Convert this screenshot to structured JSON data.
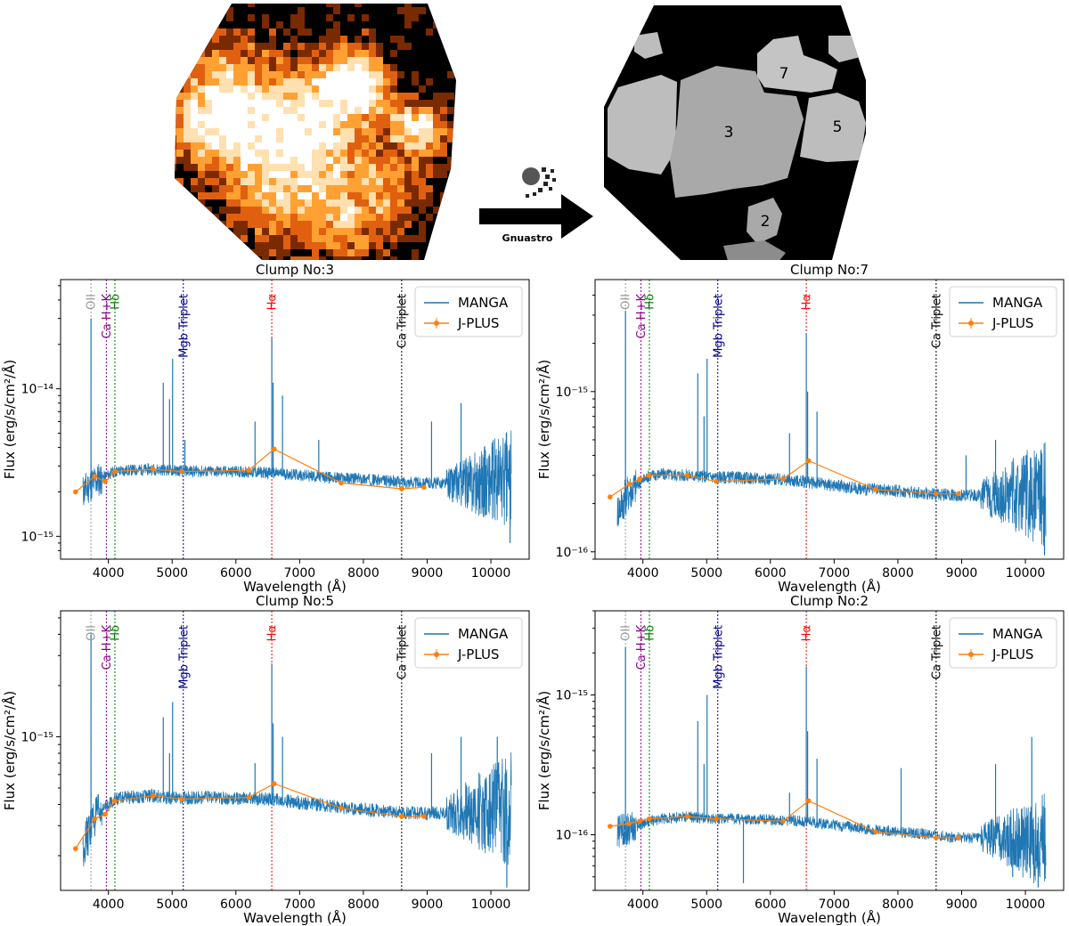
{
  "figure": {
    "arrow_label": "Gnuastro",
    "region_labels": [
      "7",
      "3",
      "5",
      "2"
    ]
  },
  "chart_data": [
    {
      "type": "line",
      "title": "Clump No:3",
      "xlabel": "Wavelength (Å)",
      "ylabel": "Flux (erg/s/cm²/Å)",
      "yscale": "log",
      "xlim": [
        3250,
        10600
      ],
      "ylim": [
        7e-16,
        5.5e-14
      ],
      "xticks": [
        4000,
        5000,
        6000,
        7000,
        8000,
        9000,
        10000
      ],
      "yticks": [
        {
          "value": 1e-15,
          "label": "10⁻¹⁵"
        },
        {
          "value": 1e-14,
          "label": "10⁻¹⁴"
        }
      ],
      "legend": {
        "position": "top-right",
        "entries": [
          "MANGA",
          "J-PLUS"
        ]
      },
      "grid": false,
      "lines": [
        {
          "x": 3727,
          "label": "OII",
          "color": "#9a9a9a"
        },
        {
          "x": 3968,
          "label": "Ca H+K",
          "color": "#8b008b"
        },
        {
          "x": 4102,
          "label": "Hδ",
          "color": "#008000"
        },
        {
          "x": 5175,
          "label": "Mgb Triplet",
          "color": "#00008b"
        },
        {
          "x": 6563,
          "label": "Hα",
          "color": "#ff0000"
        },
        {
          "x": 8600,
          "label": "Ca Triplet",
          "color": "#000000"
        }
      ],
      "series": [
        {
          "name": "MANGA",
          "color": "#1f77b4",
          "continuum": {
            "x": [
              3600,
              3750,
              3900,
              4100,
              4300,
              4700,
              5000,
              5500,
              6000,
              6500,
              7000,
              7500,
              8000,
              8500,
              9000,
              9500,
              10000,
              10300
            ],
            "y": [
              2e-15,
              2.3e-15,
              2.5e-15,
              2.75e-15,
              2.8e-15,
              2.85e-15,
              2.8e-15,
              2.75e-15,
              2.75e-15,
              2.7e-15,
              2.6e-15,
              2.5e-15,
              2.45e-15,
              2.35e-15,
              2.3e-15,
              2.3e-15,
              2.35e-15,
              2.4e-15
            ]
          },
          "emission": [
            {
              "x": 3727,
              "y": 3e-14
            },
            {
              "x": 4861,
              "y": 1.1e-14
            },
            {
              "x": 4959,
              "y": 8.5e-15
            },
            {
              "x": 5007,
              "y": 1.6e-14
            },
            {
              "x": 5200,
              "y": 4.5e-15
            },
            {
              "x": 6300,
              "y": 6e-15
            },
            {
              "x": 6563,
              "y": 2.2e-14
            },
            {
              "x": 6584,
              "y": 1.1e-14
            },
            {
              "x": 6731,
              "y": 9e-15
            },
            {
              "x": 9069,
              "y": 6e-15
            },
            {
              "x": 9532,
              "y": 8e-15
            },
            {
              "x": 7300,
              "y": 4.5e-15
            }
          ],
          "absorption": [
            {
              "x": 10300,
              "y": 9e-16
            },
            {
              "x": 9400,
              "y": 1.7e-15
            }
          ]
        },
        {
          "name": "J-PLUS",
          "color": "#ff7f0e",
          "x": [
            3485,
            3785,
            3950,
            4100,
            4700,
            5150,
            6200,
            6600,
            7650,
            8600,
            8950
          ],
          "y": [
            2e-15,
            2.55e-15,
            2.35e-15,
            2.75e-15,
            2.85e-15,
            2.75e-15,
            2.8e-15,
            3.9e-15,
            2.3e-15,
            2.1e-15,
            2.15e-15
          ]
        }
      ]
    },
    {
      "type": "line",
      "title": "Clump No:7",
      "xlabel": "Wavelength (Å)",
      "ylabel": "Flux (erg/s/cm²/Å)",
      "yscale": "log",
      "xlim": [
        3250,
        10600
      ],
      "ylim": [
        9e-17,
        5e-15
      ],
      "xticks": [
        4000,
        5000,
        6000,
        7000,
        8000,
        9000,
        10000
      ],
      "yticks": [
        {
          "value": 1e-16,
          "label": "10⁻¹⁶"
        },
        {
          "value": 1e-15,
          "label": "10⁻¹⁵"
        }
      ],
      "legend": {
        "position": "top-right",
        "entries": [
          "MANGA",
          "J-PLUS"
        ]
      },
      "grid": false,
      "lines": [
        {
          "x": 3727,
          "label": "OII",
          "color": "#9a9a9a"
        },
        {
          "x": 3968,
          "label": "Ca H+K",
          "color": "#8b008b"
        },
        {
          "x": 4102,
          "label": "Hδ",
          "color": "#008000"
        },
        {
          "x": 5175,
          "label": "Mgb Triplet",
          "color": "#00008b"
        },
        {
          "x": 6563,
          "label": "Hα",
          "color": "#ff0000"
        },
        {
          "x": 8600,
          "label": "Ca Triplet",
          "color": "#000000"
        }
      ],
      "series": [
        {
          "name": "MANGA",
          "color": "#1f77b4",
          "continuum": {
            "x": [
              3600,
              3750,
              3900,
              4100,
              4300,
              4700,
              5000,
              5500,
              6000,
              6500,
              7000,
              7500,
              8000,
              8500,
              9000,
              9500,
              10000,
              10300
            ],
            "y": [
              1.8e-16,
              2.3e-16,
              2.6e-16,
              3e-16,
              3.05e-16,
              3e-16,
              2.95e-16,
              2.9e-16,
              2.85e-16,
              2.75e-16,
              2.6e-16,
              2.45e-16,
              2.4e-16,
              2.3e-16,
              2.25e-16,
              2.25e-16,
              2.3e-16,
              2.3e-16
            ]
          },
          "emission": [
            {
              "x": 3727,
              "y": 3.2e-15
            },
            {
              "x": 4861,
              "y": 1.3e-15
            },
            {
              "x": 5007,
              "y": 1.6e-15
            },
            {
              "x": 4959,
              "y": 7e-16
            },
            {
              "x": 6300,
              "y": 5.5e-16
            },
            {
              "x": 6563,
              "y": 2.3e-15
            },
            {
              "x": 6584,
              "y": 1e-15
            },
            {
              "x": 6731,
              "y": 7.5e-16
            },
            {
              "x": 9069,
              "y": 4e-16
            },
            {
              "x": 9532,
              "y": 5e-16
            }
          ],
          "absorption": [
            {
              "x": 10300,
              "y": 9.5e-17
            },
            {
              "x": 3700,
              "y": 1.6e-16
            }
          ]
        },
        {
          "name": "J-PLUS",
          "color": "#ff7f0e",
          "x": [
            3485,
            3785,
            3950,
            4100,
            4700,
            5150,
            6200,
            6600,
            7650,
            8600,
            8950
          ],
          "y": [
            2.2e-16,
            2.65e-16,
            2.85e-16,
            3e-16,
            3e-16,
            2.75e-16,
            2.85e-16,
            3.7e-16,
            2.45e-16,
            2.3e-16,
            2.3e-16
          ]
        }
      ]
    },
    {
      "type": "line",
      "title": "Clump No:5",
      "xlabel": "Wavelength (Å)",
      "ylabel": "Flux (erg/s/cm²/Å)",
      "yscale": "log",
      "xlim": [
        3250,
        10600
      ],
      "ylim": [
        1.25e-16,
        5.5e-15
      ],
      "xticks": [
        4000,
        5000,
        6000,
        7000,
        8000,
        9000,
        10000
      ],
      "yticks": [
        {
          "value": 1e-15,
          "label": "10⁻¹⁵"
        }
      ],
      "legend": {
        "position": "top-right",
        "entries": [
          "MANGA",
          "J-PLUS"
        ]
      },
      "grid": false,
      "lines": [
        {
          "x": 3727,
          "label": "OII",
          "color": "#9a9a9a"
        },
        {
          "x": 3968,
          "label": "Ca H+K",
          "color": "#8b008b"
        },
        {
          "x": 4102,
          "label": "Hδ",
          "color": "#008000"
        },
        {
          "x": 5175,
          "label": "Mgb Triplet",
          "color": "#00008b"
        },
        {
          "x": 6563,
          "label": "Hα",
          "color": "#ff0000"
        },
        {
          "x": 8600,
          "label": "Ca Triplet",
          "color": "#000000"
        }
      ],
      "series": [
        {
          "name": "MANGA",
          "color": "#1f77b4",
          "continuum": {
            "x": [
              3600,
              3750,
              3900,
              4100,
              4300,
              4700,
              5000,
              5500,
              6000,
              6500,
              7000,
              7500,
              8000,
              8500,
              9000,
              9500,
              10000,
              10300
            ],
            "y": [
              2.2e-16,
              3.2e-16,
              3.7e-16,
              4.3e-16,
              4.4e-16,
              4.5e-16,
              4.35e-16,
              4.4e-16,
              4.35e-16,
              4.3e-16,
              4.1e-16,
              3.9e-16,
              3.75e-16,
              3.6e-16,
              3.55e-16,
              3.6e-16,
              3.7e-16,
              3.8e-16
            ]
          },
          "emission": [
            {
              "x": 3727,
              "y": 4e-15
            },
            {
              "x": 4861,
              "y": 1.3e-15
            },
            {
              "x": 5007,
              "y": 1.6e-15
            },
            {
              "x": 4959,
              "y": 8e-16
            },
            {
              "x": 6300,
              "y": 7e-16
            },
            {
              "x": 6563,
              "y": 2.7e-15
            },
            {
              "x": 6584,
              "y": 1.2e-15
            },
            {
              "x": 6731,
              "y": 1e-15
            },
            {
              "x": 9069,
              "y": 8e-16
            },
            {
              "x": 9532,
              "y": 1e-15
            },
            {
              "x": 10100,
              "y": 1e-15
            }
          ],
          "absorption": [
            {
              "x": 10250,
              "y": 1.3e-16
            },
            {
              "x": 3680,
              "y": 2e-16
            }
          ]
        },
        {
          "name": "J-PLUS",
          "color": "#ff7f0e",
          "x": [
            3485,
            3785,
            3950,
            4100,
            4700,
            5150,
            6200,
            6600,
            7650,
            8600,
            8950
          ],
          "y": [
            2.2e-16,
            3.3e-16,
            3.5e-16,
            4.2e-16,
            4.5e-16,
            4.3e-16,
            4.4e-16,
            5.3e-16,
            3.8e-16,
            3.4e-16,
            3.4e-16
          ]
        }
      ]
    },
    {
      "type": "line",
      "title": "Clump No:2",
      "xlabel": "Wavelength (Å)",
      "ylabel": "Flux (erg/s/cm²/Å)",
      "yscale": "log",
      "xlim": [
        3250,
        10600
      ],
      "ylim": [
        4e-17,
        4e-15
      ],
      "xticks": [
        4000,
        5000,
        6000,
        7000,
        8000,
        9000,
        10000
      ],
      "yticks": [
        {
          "value": 1e-16,
          "label": "10⁻¹⁶"
        },
        {
          "value": 1e-15,
          "label": "10⁻¹⁵"
        }
      ],
      "legend": {
        "position": "top-right",
        "entries": [
          "MANGA",
          "J-PLUS"
        ]
      },
      "grid": false,
      "lines": [
        {
          "x": 3727,
          "label": "OII",
          "color": "#9a9a9a"
        },
        {
          "x": 3968,
          "label": "Ca H+K",
          "color": "#8b008b"
        },
        {
          "x": 4102,
          "label": "Hδ",
          "color": "#008000"
        },
        {
          "x": 5175,
          "label": "Mgb Triplet",
          "color": "#00008b"
        },
        {
          "x": 6563,
          "label": "Hα",
          "color": "#ff0000"
        },
        {
          "x": 8600,
          "label": "Ca Triplet",
          "color": "#000000"
        }
      ],
      "series": [
        {
          "name": "MANGA",
          "color": "#1f77b4",
          "continuum": {
            "x": [
              3600,
              3750,
              3900,
              4100,
              4300,
              4700,
              5000,
              5500,
              6000,
              6500,
              7000,
              7500,
              8000,
              8500,
              9000,
              9500,
              10000,
              10300
            ],
            "y": [
              1.05e-16,
              1.1e-16,
              1.15e-16,
              1.25e-16,
              1.3e-16,
              1.35e-16,
              1.3e-16,
              1.3e-16,
              1.28e-16,
              1.25e-16,
              1.18e-16,
              1.1e-16,
              1.05e-16,
              1e-16,
              9.5e-17,
              9.5e-17,
              9e-17,
              9e-17
            ]
          },
          "emission": [
            {
              "x": 3727,
              "y": 2.2e-15
            },
            {
              "x": 4861,
              "y": 6.5e-16
            },
            {
              "x": 5007,
              "y": 1e-15
            },
            {
              "x": 4959,
              "y": 3.2e-16
            },
            {
              "x": 6300,
              "y": 2e-16
            },
            {
              "x": 6563,
              "y": 1.6e-15
            },
            {
              "x": 6584,
              "y": 5.5e-16
            },
            {
              "x": 6731,
              "y": 3.5e-16
            },
            {
              "x": 9532,
              "y": 3.2e-16
            },
            {
              "x": 10100,
              "y": 5e-16
            },
            {
              "x": 8050,
              "y": 3e-16
            }
          ],
          "absorption": [
            {
              "x": 5577,
              "y": 4.5e-17
            },
            {
              "x": 10200,
              "y": 4.2e-17
            },
            {
              "x": 9800,
              "y": 5e-17
            }
          ]
        },
        {
          "name": "J-PLUS",
          "color": "#ff7f0e",
          "x": [
            3485,
            3785,
            3950,
            4100,
            4700,
            5150,
            6200,
            6600,
            7650,
            8600,
            8950
          ],
          "y": [
            1.15e-16,
            1.2e-16,
            1.25e-16,
            1.3e-16,
            1.35e-16,
            1.3e-16,
            1.25e-16,
            1.75e-16,
            1.05e-16,
            9.5e-17,
            9.5e-17
          ]
        }
      ]
    }
  ]
}
